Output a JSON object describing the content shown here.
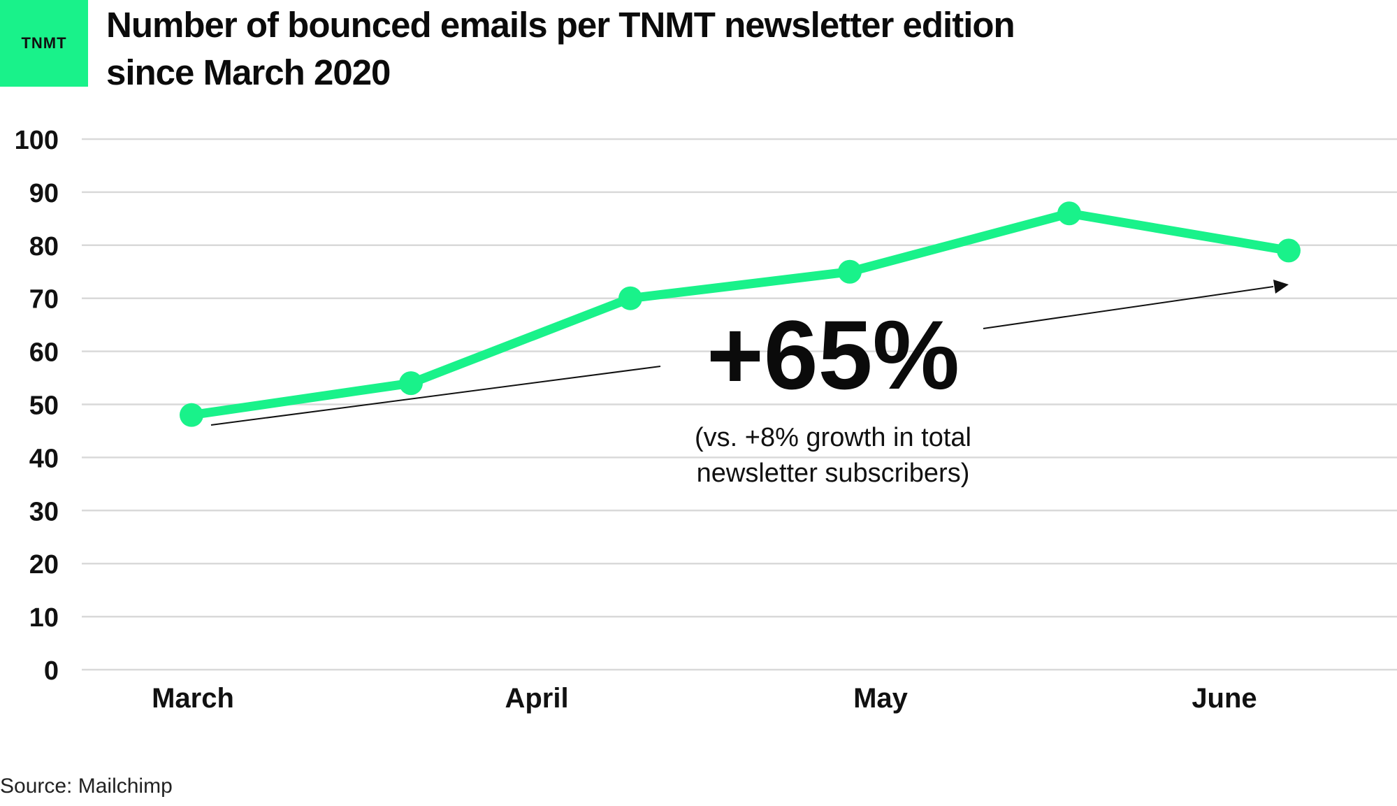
{
  "logo": {
    "text": "TNMT",
    "color": "#19f28a"
  },
  "title": "Number of bounced emails per TNMT newsletter edition since March 2020",
  "source": "Source: Mailchimp",
  "colors": {
    "line": "#19f28a",
    "grid": "#d9d9d9",
    "text": "#111111"
  },
  "chart_data": {
    "type": "line",
    "title": "Number of bounced emails per TNMT newsletter edition since March 2020",
    "xlabel": "",
    "ylabel": "",
    "ylim": [
      0,
      100
    ],
    "yticks": [
      0,
      10,
      20,
      30,
      40,
      50,
      60,
      70,
      80,
      90,
      100
    ],
    "x_month_labels": [
      "March",
      "April",
      "May",
      "June"
    ],
    "grid": true,
    "series": [
      {
        "values": [
          48,
          54,
          70,
          75,
          86,
          79
        ]
      }
    ],
    "annotations": {
      "big_text": "+65%",
      "note_line1": "(vs. +8% growth in total",
      "note_line2": "newsletter subscribers)"
    }
  }
}
